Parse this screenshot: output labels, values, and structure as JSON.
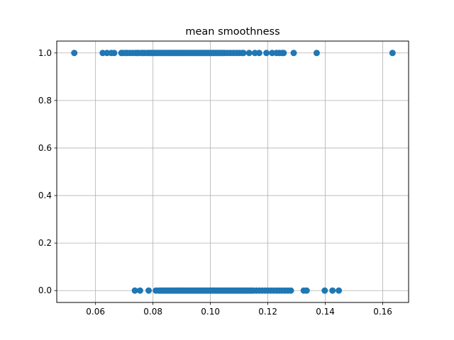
{
  "chart_data": {
    "type": "scatter",
    "title": "mean smoothness",
    "xlabel": "",
    "ylabel": "",
    "xlim": [
      0.0465,
      0.169
    ],
    "ylim": [
      -0.05,
      1.05
    ],
    "grid": true,
    "legend": "none",
    "marker_color": "#1f77b4",
    "x_ticks": [
      0.06,
      0.08,
      0.1,
      0.12,
      0.14,
      0.16
    ],
    "x_tick_labels": [
      "0.06",
      "0.08",
      "0.10",
      "0.12",
      "0.14",
      "0.16"
    ],
    "y_ticks": [
      0.0,
      0.2,
      0.4,
      0.6,
      0.8,
      1.0
    ],
    "y_tick_labels": [
      "0.0",
      "0.2",
      "0.4",
      "0.6",
      "0.8",
      "1.0"
    ],
    "series": [
      {
        "y": 1,
        "x": [
          0.0526,
          0.0625,
          0.064,
          0.0655,
          0.0665,
          0.069,
          0.0695,
          0.0705,
          0.071,
          0.072,
          0.073,
          0.074,
          0.0745,
          0.075,
          0.076,
          0.0765,
          0.077,
          0.078,
          0.0785,
          0.079,
          0.0795,
          0.08,
          0.0805,
          0.081,
          0.0815,
          0.082,
          0.0825,
          0.083,
          0.0835,
          0.084,
          0.0845,
          0.085,
          0.0855,
          0.086,
          0.0865,
          0.087,
          0.0875,
          0.088,
          0.0885,
          0.089,
          0.0895,
          0.09,
          0.0905,
          0.091,
          0.0915,
          0.092,
          0.0925,
          0.093,
          0.0935,
          0.094,
          0.0945,
          0.095,
          0.0955,
          0.096,
          0.0965,
          0.097,
          0.0975,
          0.098,
          0.0985,
          0.099,
          0.0995,
          0.1,
          0.1005,
          0.101,
          0.1015,
          0.102,
          0.1025,
          0.103,
          0.1035,
          0.104,
          0.1045,
          0.105,
          0.106,
          0.107,
          0.108,
          0.109,
          0.11,
          0.111,
          0.1115,
          0.1135,
          0.1155,
          0.117,
          0.1195,
          0.1215,
          0.123,
          0.124,
          0.125,
          0.1255,
          0.129,
          0.137,
          0.1634
        ]
      },
      {
        "y": 0,
        "x": [
          0.0737,
          0.0755,
          0.0785,
          0.081,
          0.082,
          0.0825,
          0.083,
          0.0835,
          0.084,
          0.0845,
          0.085,
          0.0855,
          0.086,
          0.0865,
          0.087,
          0.0875,
          0.088,
          0.0885,
          0.089,
          0.0895,
          0.09,
          0.0905,
          0.091,
          0.0915,
          0.092,
          0.0925,
          0.093,
          0.0935,
          0.094,
          0.0945,
          0.095,
          0.0955,
          0.096,
          0.0965,
          0.097,
          0.0975,
          0.098,
          0.0985,
          0.099,
          0.0995,
          0.1,
          0.1005,
          0.101,
          0.1015,
          0.102,
          0.1025,
          0.103,
          0.1035,
          0.104,
          0.1045,
          0.105,
          0.1055,
          0.106,
          0.1065,
          0.107,
          0.1075,
          0.108,
          0.1085,
          0.109,
          0.1095,
          0.11,
          0.1105,
          0.111,
          0.1115,
          0.112,
          0.1125,
          0.113,
          0.1135,
          0.114,
          0.1145,
          0.115,
          0.116,
          0.117,
          0.118,
          0.119,
          0.12,
          0.121,
          0.122,
          0.123,
          0.124,
          0.125,
          0.126,
          0.127,
          0.128,
          0.1325,
          0.1335,
          0.1398,
          0.1425,
          0.1447
        ]
      }
    ]
  }
}
